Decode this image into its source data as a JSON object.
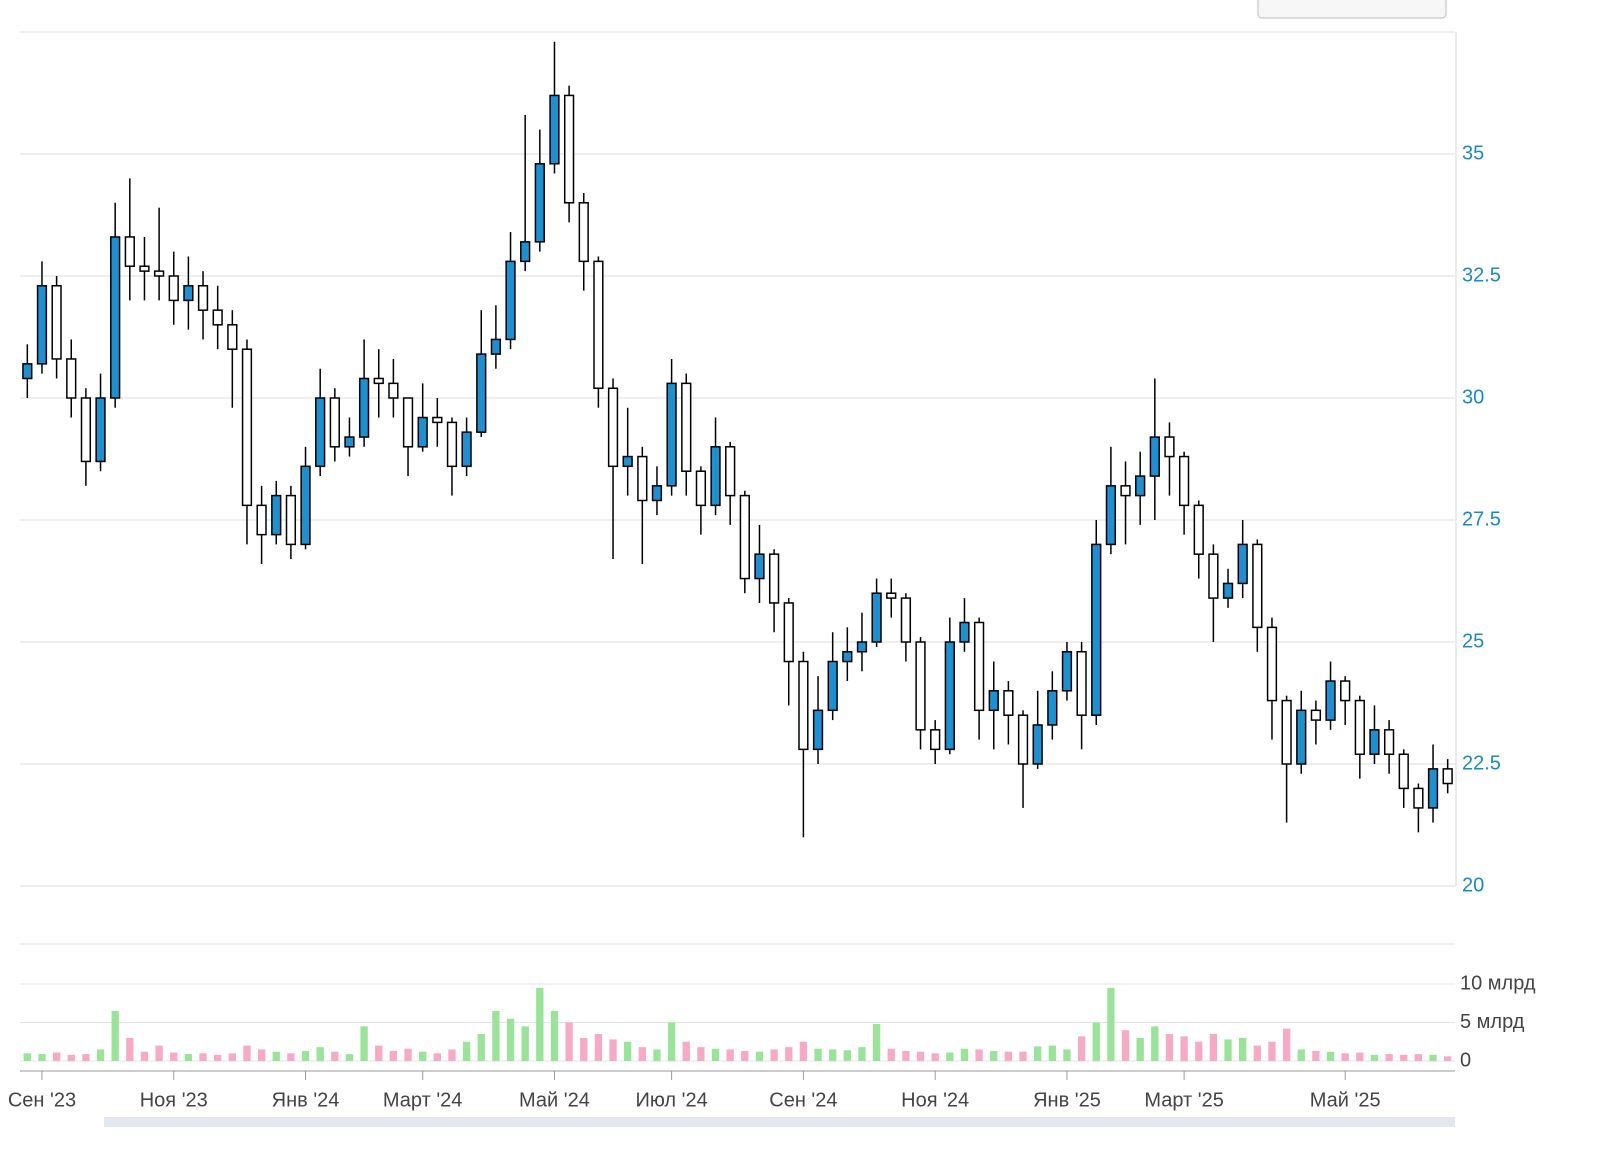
{
  "chart_data": {
    "type": "candlestick",
    "categories": [
      null,
      "Сен '23",
      null,
      null,
      null,
      null,
      null,
      null,
      null,
      null,
      "Ноя '23",
      null,
      null,
      null,
      null,
      null,
      null,
      null,
      null,
      "Янв '24",
      null,
      null,
      null,
      null,
      null,
      null,
      null,
      "Март '24",
      null,
      null,
      null,
      null,
      null,
      null,
      null,
      null,
      "Май '24",
      null,
      null,
      null,
      null,
      null,
      null,
      null,
      "Июл '24",
      null,
      null,
      null,
      null,
      null,
      null,
      null,
      null,
      "Сен '24",
      null,
      null,
      null,
      null,
      null,
      null,
      null,
      null,
      "Ноя '24",
      null,
      null,
      null,
      null,
      null,
      null,
      null,
      null,
      "Янв '25",
      null,
      null,
      null,
      null,
      null,
      null,
      null,
      "Март '25",
      null,
      null,
      null,
      null,
      null,
      null,
      null,
      null,
      null,
      null,
      "Май '25",
      null,
      null,
      null,
      null,
      null,
      null,
      null
    ],
    "open": [
      30.4,
      30.7,
      32.3,
      30.8,
      30.0,
      28.7,
      30.0,
      33.3,
      32.7,
      32.6,
      32.5,
      32.0,
      32.3,
      31.8,
      31.5,
      31.0,
      27.8,
      27.2,
      28.0,
      27.0,
      28.6,
      30.0,
      29.0,
      29.2,
      30.4,
      30.3,
      30.0,
      29.0,
      29.6,
      29.5,
      28.6,
      29.3,
      30.9,
      31.2,
      32.8,
      33.2,
      34.8,
      36.2,
      34.0,
      32.8,
      30.2,
      28.6,
      28.8,
      27.9,
      28.2,
      30.3,
      28.5,
      27.8,
      29.0,
      28.0,
      26.3,
      26.8,
      25.8,
      24.6,
      22.8,
      23.6,
      24.6,
      24.8,
      25.0,
      26.0,
      25.9,
      25.0,
      23.2,
      22.8,
      25.0,
      25.4,
      23.6,
      24.0,
      23.5,
      22.5,
      23.3,
      24.0,
      24.8,
      23.5,
      27.0,
      28.2,
      28.0,
      28.4,
      29.2,
      28.8,
      27.8,
      26.8,
      25.9,
      26.2,
      27.0,
      25.3,
      23.8,
      22.5,
      23.6,
      23.4,
      24.2,
      23.8,
      22.7,
      23.2,
      22.7,
      22.0,
      21.6,
      22.4
    ],
    "high": [
      31.1,
      32.8,
      32.5,
      31.2,
      30.2,
      30.5,
      34.0,
      34.5,
      33.3,
      33.9,
      33.0,
      32.9,
      32.6,
      32.3,
      31.8,
      31.2,
      28.2,
      28.3,
      28.2,
      29.0,
      30.6,
      30.2,
      29.6,
      31.2,
      31.0,
      30.8,
      30.0,
      30.3,
      30.0,
      29.6,
      29.6,
      31.8,
      31.9,
      33.4,
      35.8,
      35.5,
      37.3,
      36.4,
      34.2,
      32.9,
      30.4,
      29.8,
      29.0,
      28.6,
      30.8,
      30.5,
      28.6,
      29.6,
      29.1,
      28.1,
      27.4,
      26.9,
      25.9,
      24.8,
      24.3,
      25.2,
      25.3,
      25.6,
      26.3,
      26.3,
      26.0,
      25.1,
      23.4,
      25.5,
      25.9,
      25.5,
      24.6,
      24.2,
      23.6,
      24.0,
      24.4,
      25.0,
      25.0,
      27.5,
      29.0,
      28.7,
      28.9,
      30.4,
      29.5,
      28.9,
      27.9,
      27.0,
      26.5,
      27.5,
      27.1,
      25.5,
      23.9,
      24.0,
      23.8,
      24.6,
      24.3,
      23.9,
      23.7,
      23.4,
      22.8,
      22.1,
      22.9,
      22.6
    ],
    "low": [
      30.0,
      30.5,
      30.4,
      29.6,
      28.2,
      28.5,
      29.8,
      32.0,
      32.0,
      32.0,
      31.5,
      31.4,
      31.2,
      31.0,
      29.8,
      27.0,
      26.6,
      27.0,
      26.7,
      26.9,
      28.4,
      28.7,
      28.8,
      29.0,
      29.6,
      29.6,
      28.4,
      28.9,
      29.0,
      28.0,
      28.4,
      29.2,
      30.6,
      31.0,
      32.6,
      33.0,
      34.6,
      33.6,
      32.2,
      29.8,
      26.7,
      28.0,
      26.6,
      27.6,
      28.0,
      28.0,
      27.2,
      27.6,
      27.4,
      26.0,
      25.8,
      25.2,
      23.7,
      21.0,
      22.5,
      23.4,
      24.2,
      24.4,
      24.9,
      25.5,
      24.6,
      22.8,
      22.5,
      22.7,
      24.8,
      23.0,
      22.8,
      22.9,
      21.6,
      22.4,
      23.0,
      23.8,
      22.8,
      23.3,
      26.8,
      27.0,
      27.4,
      27.5,
      28.0,
      27.2,
      26.3,
      25.0,
      25.7,
      25.9,
      24.8,
      23.0,
      21.3,
      22.3,
      22.9,
      23.2,
      23.3,
      22.2,
      22.5,
      22.3,
      21.6,
      21.1,
      21.3,
      21.9
    ],
    "close": [
      30.7,
      32.3,
      30.8,
      30.0,
      28.7,
      30.0,
      33.3,
      32.7,
      32.6,
      32.5,
      32.0,
      32.3,
      31.8,
      31.5,
      31.0,
      27.8,
      27.2,
      28.0,
      27.0,
      28.6,
      30.0,
      29.0,
      29.2,
      30.4,
      30.3,
      30.0,
      29.0,
      29.6,
      29.5,
      28.6,
      29.3,
      30.9,
      31.2,
      32.8,
      33.2,
      34.8,
      36.2,
      34.0,
      32.8,
      30.2,
      28.6,
      28.8,
      27.9,
      28.2,
      30.3,
      28.5,
      27.8,
      29.0,
      28.0,
      26.3,
      26.8,
      25.8,
      24.6,
      22.8,
      23.6,
      24.6,
      24.8,
      25.0,
      26.0,
      25.9,
      25.0,
      23.2,
      22.8,
      25.0,
      25.4,
      23.6,
      24.0,
      23.5,
      22.5,
      23.3,
      24.0,
      24.8,
      23.5,
      27.0,
      28.2,
      28.0,
      28.4,
      29.2,
      28.8,
      27.8,
      26.8,
      25.9,
      26.2,
      27.0,
      25.3,
      23.8,
      22.5,
      23.6,
      23.4,
      24.2,
      23.8,
      22.7,
      23.2,
      22.7,
      22.0,
      21.6,
      22.4,
      22.1
    ],
    "volume": [
      1.0,
      0.9,
      1.1,
      0.8,
      0.9,
      1.5,
      6.5,
      3.0,
      1.2,
      2.0,
      1.1,
      0.9,
      1.0,
      0.8,
      1.0,
      2.0,
      1.5,
      1.2,
      1.0,
      1.3,
      1.8,
      1.2,
      0.9,
      4.5,
      2.0,
      1.3,
      1.6,
      1.2,
      1.0,
      1.5,
      2.5,
      3.5,
      6.5,
      5.5,
      4.5,
      9.5,
      6.5,
      5.0,
      3.0,
      3.5,
      2.8,
      2.5,
      1.8,
      1.5,
      5.0,
      2.5,
      1.8,
      1.6,
      1.5,
      1.3,
      1.2,
      1.5,
      1.8,
      2.5,
      1.6,
      1.5,
      1.4,
      1.8,
      4.8,
      1.6,
      1.3,
      1.2,
      1.0,
      1.1,
      1.6,
      1.5,
      1.3,
      1.2,
      1.2,
      1.9,
      2.0,
      1.5,
      3.2,
      5.0,
      9.5,
      4.0,
      3.0,
      4.5,
      3.5,
      3.2,
      2.5,
      3.5,
      2.8,
      3.0,
      2.0,
      2.5,
      4.2,
      1.5,
      1.3,
      1.2,
      1.0,
      1.1,
      0.8,
      0.9,
      0.8,
      0.9,
      0.8,
      0.6
    ],
    "ylim": [
      20,
      37.5
    ],
    "yticks": [
      20,
      22.5,
      25,
      27.5,
      30,
      32.5,
      35
    ],
    "volume_ylim": [
      0,
      15
    ],
    "volume_yticks": [
      0,
      {
        "value": 5,
        "label": "5 млрд"
      },
      {
        "value": 10,
        "label": "10 млрд"
      }
    ],
    "up_color": "#1f8fcf",
    "down_color": "#ffffff",
    "volume_up_color": "#9be39b",
    "volume_down_color": "#f7aac6",
    "grid": true
  }
}
